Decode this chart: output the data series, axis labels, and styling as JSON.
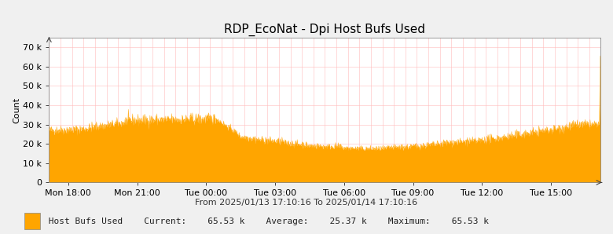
{
  "title": "RDP_EcoNat - Dpi Host Bufs Used",
  "xlabel": "From 2025/01/13 17:10:16 To 2025/01/14 17:10:16",
  "ylabel": "Count",
  "ylim": [
    0,
    75000
  ],
  "yticks": [
    0,
    10000,
    20000,
    30000,
    40000,
    50000,
    60000,
    70000
  ],
  "ytick_labels": [
    "0",
    "10 k",
    "20 k",
    "30 k",
    "40 k",
    "50 k",
    "60 k",
    "70 k"
  ],
  "xtick_labels": [
    "Mon 18:00",
    "Mon 21:00",
    "Tue 00:00",
    "Tue 03:00",
    "Tue 06:00",
    "Tue 09:00",
    "Tue 12:00",
    "Tue 15:00"
  ],
  "fill_color": "#FFA500",
  "line_color": "#FFA500",
  "bg_color": "#F0F0F0",
  "plot_bg_color": "#FFFFFF",
  "grid_color": "#FFBBBB",
  "title_fontsize": 11,
  "axis_fontsize": 8,
  "tick_fontsize": 8,
  "legend_label": "Host Bufs Used",
  "legend_current": "65.53 k",
  "legend_average": "25.37 k",
  "legend_maximum": "65.53 k",
  "legend_box_color": "#FFA500",
  "total_minutes": 1440,
  "tick_minutes": [
    50,
    230,
    410,
    590,
    770,
    950,
    1130,
    1310
  ]
}
